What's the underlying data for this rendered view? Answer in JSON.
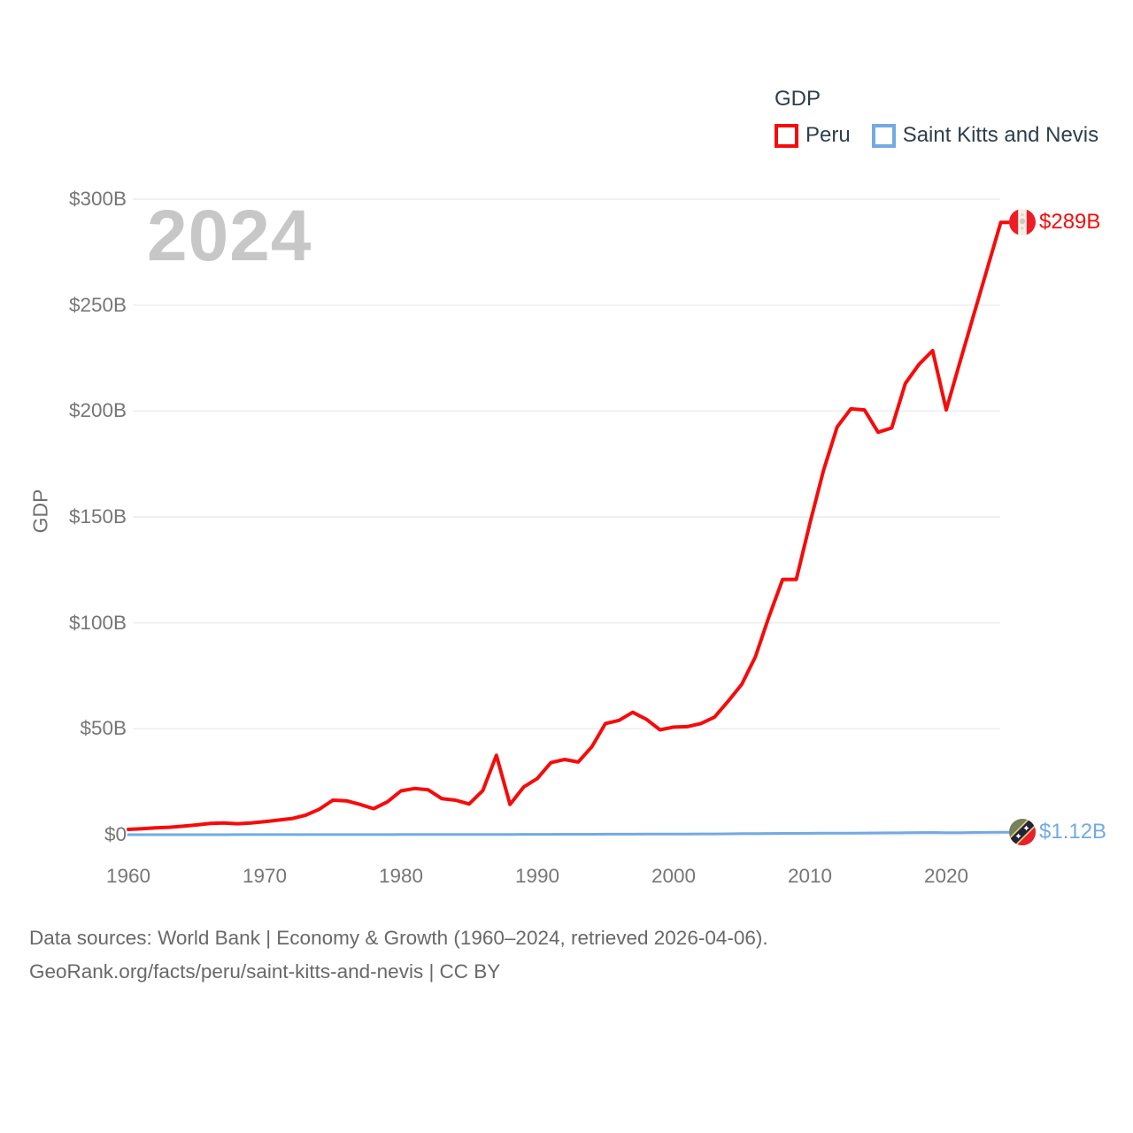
{
  "legend": {
    "title": "GDP",
    "items": [
      {
        "label": "Peru"
      },
      {
        "label": "Saint Kitts and Nevis"
      }
    ]
  },
  "watermark": {
    "text": "2024"
  },
  "chart_data": {
    "type": "line",
    "title": "GDP",
    "ylabel": "GDP",
    "xlim": [
      1960,
      2024
    ],
    "ylim": [
      0,
      300
    ],
    "grid": "horizontal",
    "legend_position": "top-right",
    "xticks": [
      1960,
      1970,
      1980,
      1990,
      2000,
      2010,
      2020
    ],
    "yticks": [
      {
        "label": "$0",
        "value": 0
      },
      {
        "label": "$50B",
        "value": 50
      },
      {
        "label": "$100B",
        "value": 100
      },
      {
        "label": "$150B",
        "value": 150
      },
      {
        "label": "$200B",
        "value": 200
      },
      {
        "label": "$250B",
        "value": 250
      },
      {
        "label": "$300B",
        "value": 300
      }
    ],
    "x_years_start": 1960,
    "series": [
      {
        "name": "Peru",
        "color": "#f60b0b",
        "end_label": "$289B",
        "end_value": 289,
        "icon": "peru-flag-icon",
        "values": [
          2.5,
          2.8,
          3.2,
          3.5,
          4.0,
          4.6,
          5.3,
          5.5,
          5.2,
          5.5,
          6.2,
          6.9,
          7.6,
          9.2,
          12.0,
          16.3,
          16.0,
          14.3,
          12.3,
          15.5,
          20.7,
          21.8,
          21.2,
          17.0,
          16.3,
          14.5,
          20.8,
          37.5,
          14.3,
          22.5,
          26.5,
          34.0,
          35.5,
          34.3,
          41.5,
          52.5,
          54.0,
          57.8,
          54.5,
          49.5,
          50.8,
          51.0,
          52.5,
          55.5,
          63.0,
          71.0,
          84.0,
          103.0,
          120.5,
          120.5,
          147.0,
          172.0,
          192.5,
          201.0,
          200.5,
          190.0,
          192.0,
          213.0,
          222.0,
          228.5,
          200.5,
          223.0,
          245.0,
          267.0,
          289.0
        ]
      },
      {
        "name": "Saint Kitts and Nevis",
        "color": "#73aae2",
        "end_label": "$1.12B",
        "end_value": 1.12,
        "icon": "saint-kitts-and-nevis-flag-icon",
        "values": [
          0.012,
          0.013,
          0.014,
          0.015,
          0.016,
          0.017,
          0.018,
          0.02,
          0.021,
          0.023,
          0.025,
          0.028,
          0.031,
          0.034,
          0.037,
          0.04,
          0.045,
          0.05,
          0.056,
          0.062,
          0.068,
          0.075,
          0.082,
          0.09,
          0.1,
          0.11,
          0.12,
          0.13,
          0.14,
          0.15,
          0.16,
          0.175,
          0.19,
          0.205,
          0.22,
          0.24,
          0.255,
          0.27,
          0.29,
          0.31,
          0.33,
          0.345,
          0.36,
          0.39,
          0.43,
          0.5,
          0.55,
          0.6,
          0.62,
          0.63,
          0.68,
          0.7,
          0.73,
          0.76,
          0.8,
          0.85,
          0.89,
          0.94,
          0.99,
          1.05,
          0.93,
          0.95,
          1.03,
          1.08,
          1.12
        ]
      }
    ]
  },
  "colors": {
    "background": "#ffffff",
    "grid": "#ececec",
    "tick_text": "#767676",
    "legend_text": "#2f3e4e",
    "watermark": "#c7c7c7",
    "footer_text": "#686868"
  },
  "footer": {
    "line1": "Data sources: World Bank | Economy & Growth (1960–2024, retrieved 2026-04-06).",
    "line2": "GeoRank.org/facts/peru/saint-kitts-and-nevis | CC BY"
  }
}
